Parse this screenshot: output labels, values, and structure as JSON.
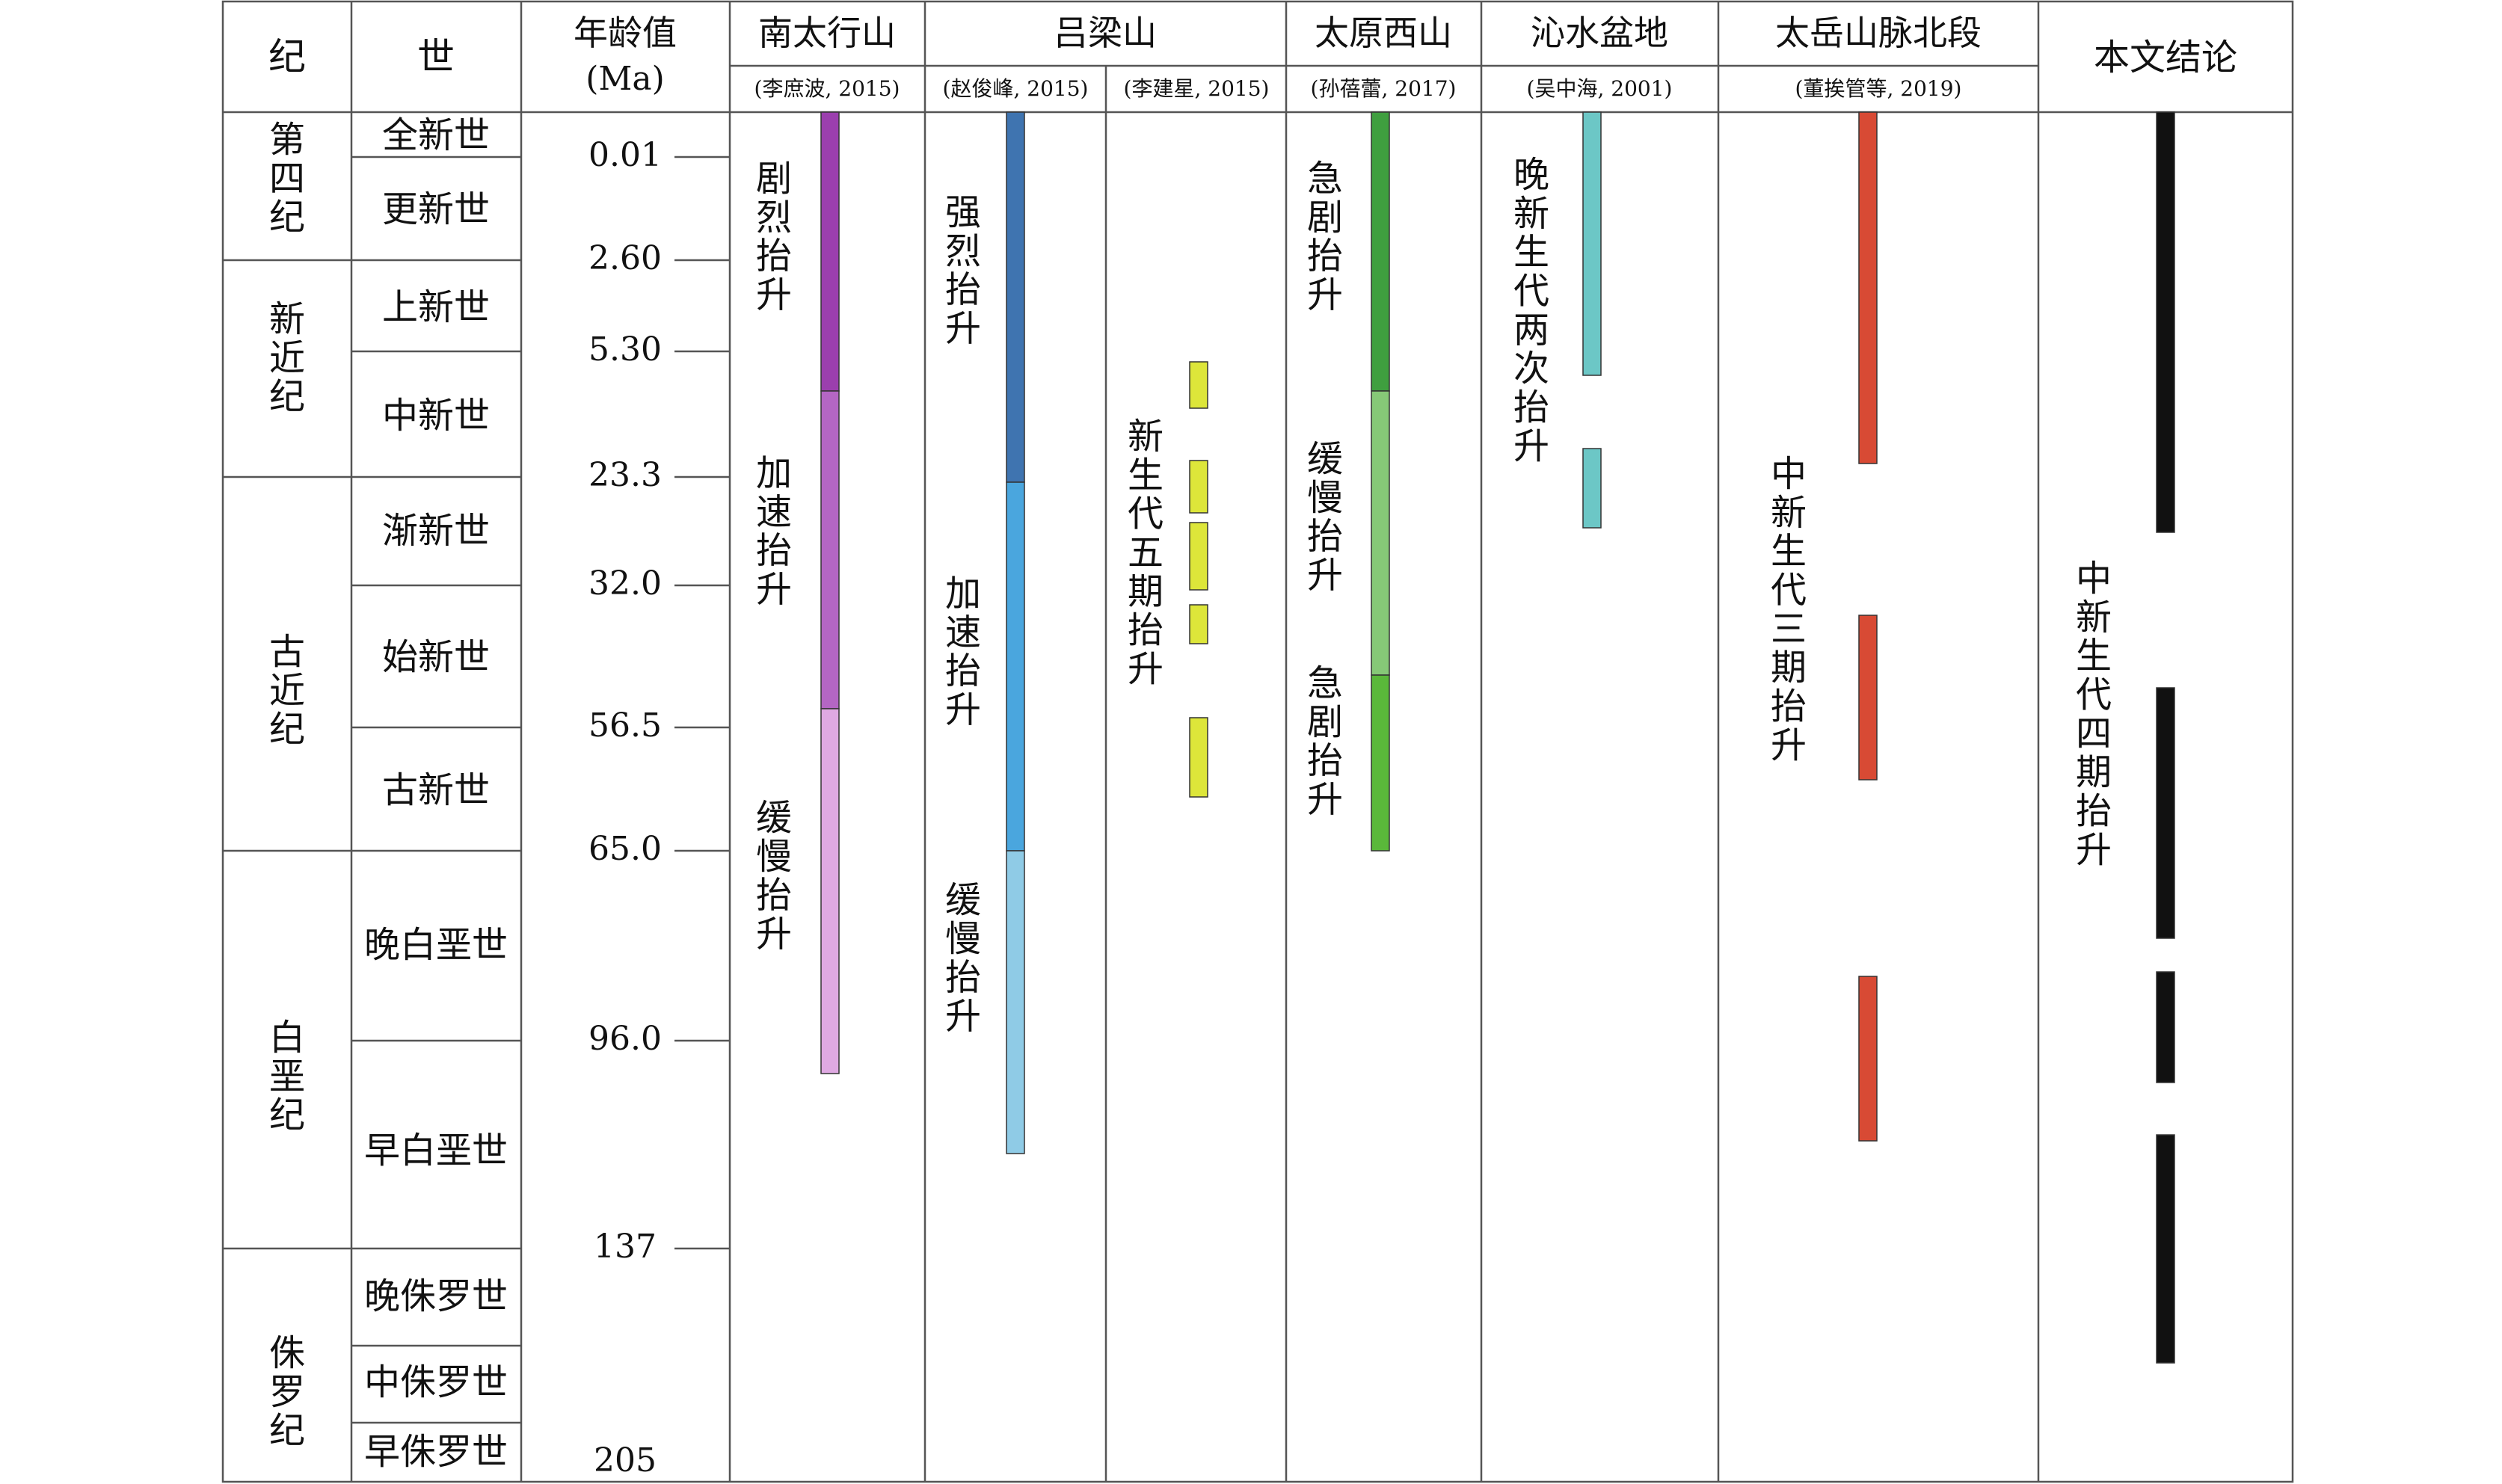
{
  "header": {
    "period": "纪",
    "epoch": "世",
    "age_title": "年龄值",
    "age_unit": "(Ma)",
    "conclusion": "本文结论"
  },
  "periods": [
    {
      "key": "quaternary",
      "name": "第四纪"
    },
    {
      "key": "neogene",
      "name": "新近纪"
    },
    {
      "key": "paleogene",
      "name": "古近纪"
    },
    {
      "key": "cretaceous",
      "name": "白垩纪"
    },
    {
      "key": "jurassic",
      "name": "侏罗纪"
    }
  ],
  "epochs": [
    {
      "key": "holocene",
      "name": "全新世"
    },
    {
      "key": "pleistocene",
      "name": "更新世"
    },
    {
      "key": "pliocene",
      "name": "上新世"
    },
    {
      "key": "miocene",
      "name": "中新世"
    },
    {
      "key": "oligocene",
      "name": "渐新世"
    },
    {
      "key": "eocene",
      "name": "始新世"
    },
    {
      "key": "paleocene",
      "name": "古新世"
    },
    {
      "key": "late-cretaceous",
      "name": "晚白垩世"
    },
    {
      "key": "early-cretaceous",
      "name": "早白垩世"
    },
    {
      "key": "late-jurassic",
      "name": "晚侏罗世"
    },
    {
      "key": "middle-jurassic",
      "name": "中侏罗世"
    },
    {
      "key": "early-jurassic",
      "name": "早侏罗世"
    }
  ],
  "ages": [
    "0.01",
    "2.60",
    "5.30",
    "23.3",
    "32.0",
    "56.5",
    "65.0",
    "96.0",
    "137",
    "205"
  ],
  "regions": [
    {
      "key": "south-taihang",
      "name": "南太行山",
      "refs": [
        "(李庶波, 2015)"
      ]
    },
    {
      "key": "lvliang",
      "name": "吕梁山",
      "refs": [
        "(赵俊峰, 2015)",
        "(李建星, 2015)"
      ]
    },
    {
      "key": "taiyuan-xishan",
      "name": "太原西山",
      "refs": [
        "(孙蓓蕾, 2017)"
      ]
    },
    {
      "key": "qinshui-basin",
      "name": "沁水盆地",
      "refs": [
        "(吴中海, 2001)"
      ]
    },
    {
      "key": "taiyue-north",
      "name": "太岳山脉北段",
      "refs": [
        "(董挨管等, 2019)"
      ]
    }
  ],
  "labels": {
    "south_taihang": [
      "剧烈抬升",
      "加速抬升",
      "缓慢抬升"
    ],
    "zhao": [
      "强烈抬升",
      "加速抬升",
      "缓慢抬升"
    ],
    "li_jx": "新生代五期抬升",
    "sun": [
      "急剧抬升",
      "缓慢抬升",
      "急剧抬升"
    ],
    "wu": "晚新生代两次抬升",
    "dong": "中新生代三期抬升",
    "conclusion": "中新生代四期抬升"
  },
  "colors": {
    "purple_dark": "#9b3fae",
    "purple_mid": "#b466c4",
    "purple_light": "#dfa9e2",
    "blue_dark": "#3f74b0",
    "blue_mid": "#4aa6de",
    "blue_light": "#8fcbe6",
    "green_dark": "#3f9f3f",
    "green_light": "#86c877",
    "green_mid": "#5ab83a",
    "yellow": "#dde63a",
    "teal": "#6cc7c6",
    "red": "#d84a34",
    "black": "#111111"
  }
}
